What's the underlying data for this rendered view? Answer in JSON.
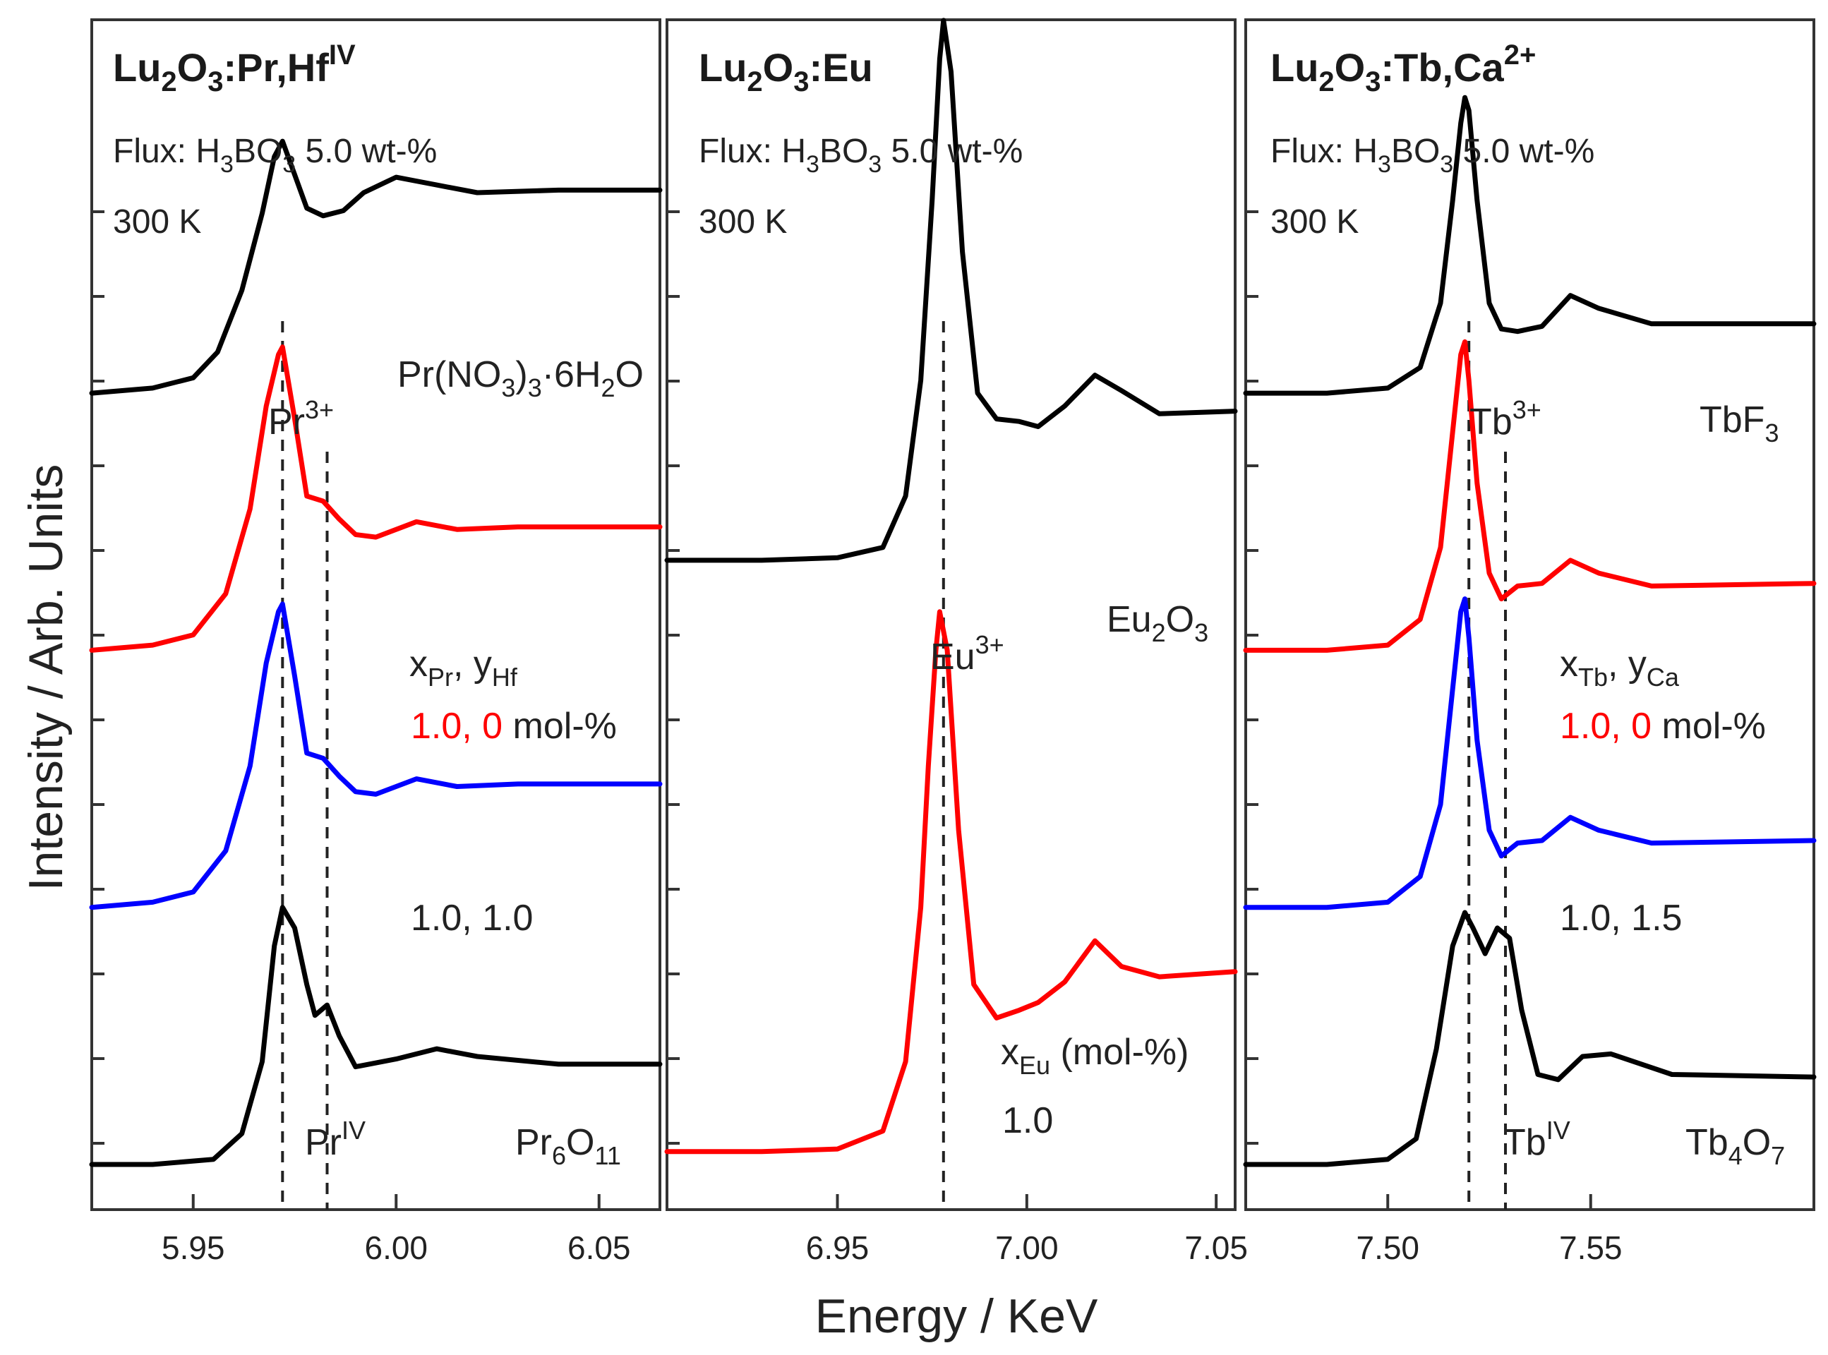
{
  "figure": {
    "ylabel": "Intensity / Arb. Units",
    "xlabel": "Energy / KeV"
  },
  "colors": {
    "black": "#000000",
    "red": "#ff0000",
    "blue": "#0000ff"
  },
  "chart_data": [
    {
      "type": "line",
      "title": {
        "base": "Lu",
        "s1": "2",
        "mid": "O",
        "s2": "3",
        "tail": ":Pr,Hf",
        "sup": "IV"
      },
      "flux": {
        "pre": "Flux: H",
        "s1": "3",
        "mid": "BO",
        "s2": "3",
        "post": " 5.0 wt-%"
      },
      "temp": "300 K",
      "xlim": [
        5.925,
        6.065
      ],
      "xticks": [
        "5.95",
        "6.00",
        "6.05"
      ],
      "xtick_values": [
        5.95,
        6.0,
        6.05
      ],
      "ylim": [
        0,
        4.2
      ],
      "ref_lines": [
        5.972,
        5.983
      ],
      "series": [
        {
          "name": "Pr(NO3)3·6H2O",
          "color": "#000000",
          "offset": 3.0,
          "x": [
            5.925,
            5.94,
            5.95,
            5.956,
            5.962,
            5.967,
            5.97,
            5.972,
            5.975,
            5.978,
            5.982,
            5.987,
            5.992,
            6.0,
            6.01,
            6.02,
            6.04,
            6.065
          ],
          "y": [
            0,
            0.02,
            0.06,
            0.16,
            0.4,
            0.7,
            0.92,
            0.98,
            0.85,
            0.72,
            0.69,
            0.71,
            0.78,
            0.84,
            0.81,
            0.78,
            0.79,
            0.79
          ]
        },
        {
          "name": "1.0, 0 mol-%",
          "color": "#ff0000",
          "offset": 2.0,
          "x": [
            5.925,
            5.94,
            5.95,
            5.958,
            5.964,
            5.968,
            5.971,
            5.972,
            5.975,
            5.978,
            5.982,
            5.986,
            5.99,
            5.995,
            6.005,
            6.015,
            6.03,
            6.065
          ],
          "y": [
            0,
            0.02,
            0.06,
            0.22,
            0.55,
            0.95,
            1.15,
            1.18,
            0.9,
            0.6,
            0.58,
            0.51,
            0.45,
            0.44,
            0.5,
            0.47,
            0.48,
            0.48
          ]
        },
        {
          "name": "1.0, 1.0 mol-%",
          "color": "#0000ff",
          "offset": 1.0,
          "x": [
            5.925,
            5.94,
            5.95,
            5.958,
            5.964,
            5.968,
            5.971,
            5.972,
            5.975,
            5.978,
            5.982,
            5.986,
            5.99,
            5.995,
            6.005,
            6.015,
            6.03,
            6.065
          ],
          "y": [
            0,
            0.02,
            0.06,
            0.22,
            0.55,
            0.95,
            1.15,
            1.18,
            0.9,
            0.6,
            0.58,
            0.51,
            0.45,
            0.44,
            0.5,
            0.47,
            0.48,
            0.48
          ]
        },
        {
          "name": "Pr6O11",
          "color": "#000000",
          "offset": 0.0,
          "x": [
            5.925,
            5.94,
            5.955,
            5.962,
            5.967,
            5.97,
            5.972,
            5.975,
            5.978,
            5.98,
            5.983,
            5.986,
            5.99,
            6.0,
            6.01,
            6.02,
            6.04,
            6.065
          ],
          "y": [
            0,
            0.0,
            0.02,
            0.12,
            0.4,
            0.85,
            1.0,
            0.92,
            0.7,
            0.58,
            0.62,
            0.5,
            0.38,
            0.41,
            0.45,
            0.42,
            0.39,
            0.39
          ]
        }
      ],
      "labels": {
        "ref_top": {
          "pre": "Pr(NO",
          "s1": "3",
          "mid": ")",
          "s2": "3",
          "post": "·6H",
          "s3": "2",
          "tail": "O"
        },
        "ion": {
          "base": "Pr",
          "sup": "3+"
        },
        "conc_head": {
          "a": "x",
          "a_sub": "Pr",
          "sep": ", y",
          "b_sub": "Hf"
        },
        "conc_red_val": "1.0, 0",
        "conc_unit": " mol-%",
        "conc_blue_val": "1.0, 1.0",
        "ion4": {
          "base": "Pr",
          "sup": "IV"
        },
        "ref_bottom": {
          "base": "Pr",
          "s1": "6",
          "mid": "O",
          "s2": "11"
        }
      }
    },
    {
      "type": "line",
      "title": {
        "base": "Lu",
        "s1": "2",
        "mid": "O",
        "s2": "3",
        "tail": ":Eu"
      },
      "flux": {
        "pre": "Flux: H",
        "s1": "3",
        "mid": "BO",
        "s2": "3",
        "post": " 5.0 wt-%"
      },
      "temp": "300 K",
      "xlim": [
        6.905,
        7.055
      ],
      "xticks": [
        "6.95",
        "7.00",
        "7.05"
      ],
      "xtick_values": [
        6.95,
        7.0,
        7.05
      ],
      "ylim": [
        0,
        4.2
      ],
      "ref_lines": [
        6.978
      ],
      "series": [
        {
          "name": "Eu2O3",
          "color": "#000000",
          "offset": 2.35,
          "x": [
            6.905,
            6.93,
            6.95,
            6.962,
            6.968,
            6.972,
            6.975,
            6.977,
            6.978,
            6.98,
            6.983,
            6.987,
            6.992,
            6.998,
            7.003,
            7.01,
            7.018,
            7.025,
            7.035,
            7.055
          ],
          "y": [
            0,
            0.0,
            0.01,
            0.05,
            0.25,
            0.7,
            1.4,
            1.95,
            2.1,
            1.9,
            1.2,
            0.65,
            0.55,
            0.54,
            0.52,
            0.6,
            0.72,
            0.66,
            0.57,
            0.58
          ]
        },
        {
          "name": "1.0 mol-%",
          "color": "#ff0000",
          "offset": 0.05,
          "x": [
            6.905,
            6.93,
            6.95,
            6.962,
            6.968,
            6.972,
            6.974,
            6.976,
            6.977,
            6.979,
            6.982,
            6.986,
            6.992,
            6.998,
            7.003,
            7.01,
            7.018,
            7.025,
            7.035,
            7.055
          ],
          "y": [
            0,
            0.0,
            0.01,
            0.08,
            0.35,
            0.95,
            1.5,
            1.95,
            2.1,
            1.95,
            1.25,
            0.65,
            0.52,
            0.55,
            0.58,
            0.66,
            0.82,
            0.72,
            0.68,
            0.7
          ]
        }
      ],
      "labels": {
        "ref_top": {
          "base": "Eu",
          "s1": "2",
          "mid": "O",
          "s2": "3"
        },
        "ion": {
          "base": "Eu",
          "sup": "3+"
        },
        "conc_head": {
          "a": "x",
          "a_sub": "Eu",
          "post": " (mol-%)"
        },
        "conc_red_val": "1.0"
      }
    },
    {
      "type": "line",
      "title": {
        "base": "Lu",
        "s1": "2",
        "mid": "O",
        "s2": "3",
        "tail": ":Tb,Ca",
        "sup": "2+"
      },
      "flux": {
        "pre": "Flux: H",
        "s1": "3",
        "mid": "BO",
        "s2": "3",
        "post": " 5.0 wt-%"
      },
      "temp": "300 K",
      "xlim": [
        7.465,
        7.605
      ],
      "xticks": [
        "7.50",
        "7.55"
      ],
      "xtick_values": [
        7.5,
        7.55
      ],
      "ylim": [
        0,
        4.2
      ],
      "ref_lines": [
        7.52,
        7.529
      ],
      "series": [
        {
          "name": "TbF3",
          "color": "#000000",
          "offset": 3.0,
          "x": [
            7.465,
            7.485,
            7.5,
            7.508,
            7.513,
            7.516,
            7.518,
            7.519,
            7.52,
            7.522,
            7.525,
            7.528,
            7.532,
            7.538,
            7.545,
            7.552,
            7.565,
            7.605
          ],
          "y": [
            0,
            0.0,
            0.02,
            0.1,
            0.35,
            0.75,
            1.05,
            1.15,
            1.1,
            0.75,
            0.35,
            0.25,
            0.24,
            0.26,
            0.38,
            0.33,
            0.27,
            0.27
          ]
        },
        {
          "name": "1.0, 0 mol-%",
          "color": "#ff0000",
          "offset": 2.0,
          "x": [
            7.465,
            7.485,
            7.5,
            7.508,
            7.513,
            7.516,
            7.518,
            7.519,
            7.52,
            7.522,
            7.525,
            7.528,
            7.532,
            7.538,
            7.545,
            7.552,
            7.565,
            7.605
          ],
          "y": [
            0,
            0.0,
            0.02,
            0.12,
            0.4,
            0.85,
            1.15,
            1.2,
            1.05,
            0.65,
            0.3,
            0.2,
            0.25,
            0.26,
            0.35,
            0.3,
            0.25,
            0.26
          ]
        },
        {
          "name": "1.0, 1.5 mol-%",
          "color": "#0000ff",
          "offset": 1.0,
          "x": [
            7.465,
            7.485,
            7.5,
            7.508,
            7.513,
            7.516,
            7.518,
            7.519,
            7.52,
            7.522,
            7.525,
            7.528,
            7.532,
            7.538,
            7.545,
            7.552,
            7.565,
            7.605
          ],
          "y": [
            0,
            0.0,
            0.02,
            0.12,
            0.4,
            0.85,
            1.15,
            1.2,
            1.05,
            0.65,
            0.3,
            0.2,
            0.25,
            0.26,
            0.35,
            0.3,
            0.25,
            0.26
          ]
        },
        {
          "name": "Tb4O7",
          "color": "#000000",
          "offset": 0.0,
          "x": [
            7.465,
            7.485,
            7.5,
            7.507,
            7.512,
            7.516,
            7.519,
            7.521,
            7.524,
            7.527,
            7.53,
            7.533,
            7.537,
            7.542,
            7.548,
            7.555,
            7.57,
            7.605
          ],
          "y": [
            0,
            0.0,
            0.02,
            0.1,
            0.45,
            0.85,
            0.98,
            0.92,
            0.82,
            0.92,
            0.88,
            0.6,
            0.35,
            0.33,
            0.42,
            0.43,
            0.35,
            0.34
          ]
        }
      ],
      "labels": {
        "ref_top": {
          "base": "TbF",
          "s1": "3"
        },
        "ion": {
          "base": "Tb",
          "sup": "3+"
        },
        "conc_head": {
          "a": "x",
          "a_sub": "Tb",
          "sep": ", y",
          "b_sub": "Ca"
        },
        "conc_red_val": "1.0, 0",
        "conc_unit": " mol-%",
        "conc_blue_val": "1.0, 1.5",
        "ion4": {
          "base": "Tb",
          "sup": "IV"
        },
        "ref_bottom": {
          "base": "Tb",
          "s1": "4",
          "mid": "O",
          "s2": "7"
        }
      }
    }
  ]
}
